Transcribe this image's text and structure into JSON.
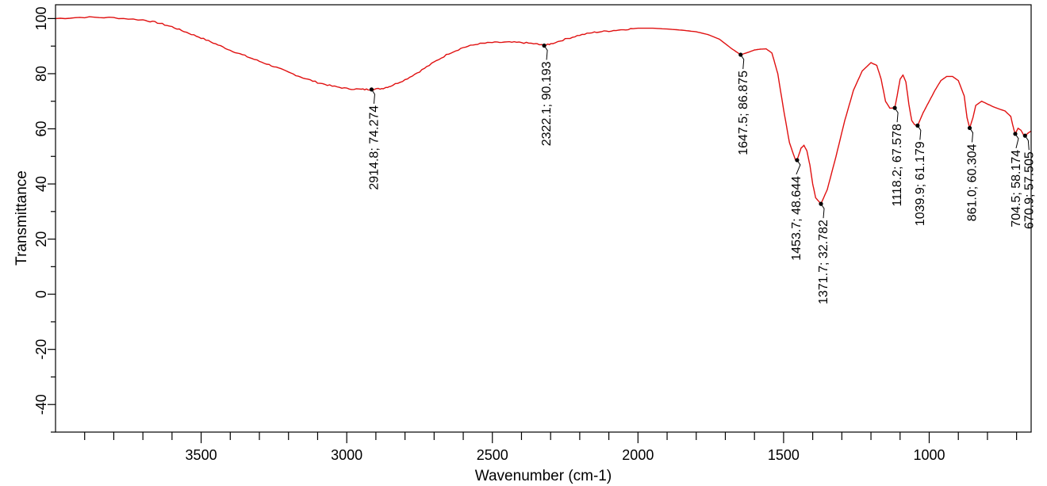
{
  "chart_data": {
    "type": "line",
    "xlabel": "Wavenumber (cm-1)",
    "ylabel": "Transmittance",
    "xlim": [
      4000,
      650
    ],
    "ylim": [
      -50,
      105
    ],
    "x_ticks": [
      3500,
      3000,
      2500,
      2000,
      1500,
      1000
    ],
    "y_ticks": [
      -40,
      -20,
      0,
      20,
      40,
      60,
      80,
      100
    ],
    "grid": false,
    "line_color": "#e01010",
    "series": [
      {
        "x": [
          4000,
          3900,
          3800,
          3700,
          3650,
          3600,
          3550,
          3500,
          3450,
          3400,
          3350,
          3300,
          3250,
          3200,
          3150,
          3100,
          3050,
          3000,
          2950,
          2914.8,
          2880,
          2850,
          2800,
          2750,
          2700,
          2650,
          2600,
          2550,
          2500,
          2450,
          2400,
          2350,
          2322.1,
          2300,
          2250,
          2200,
          2150,
          2100,
          2050,
          2000,
          1950,
          1900,
          1850,
          1800,
          1760,
          1720,
          1680,
          1647.5,
          1620,
          1600,
          1580,
          1560,
          1540,
          1520,
          1500,
          1480,
          1460,
          1453.7,
          1440,
          1430,
          1420,
          1410,
          1400,
          1390,
          1371.7,
          1350,
          1320,
          1290,
          1260,
          1230,
          1200,
          1180,
          1165,
          1150,
          1135,
          1118.2,
          1110,
          1100,
          1090,
          1080,
          1070,
          1060,
          1050,
          1039.9,
          1020,
          1000,
          980,
          960,
          940,
          920,
          900,
          880,
          870,
          861.0,
          850,
          840,
          820,
          800,
          780,
          760,
          740,
          720,
          710,
          704.5,
          695,
          685,
          675,
          670.9,
          660,
          650
        ],
        "y": [
          100,
          100.5,
          100.3,
          99.5,
          98.5,
          97,
          95,
          93,
          90.8,
          88.5,
          86.5,
          84.5,
          82.6,
          80.5,
          78.5,
          76.8,
          75.5,
          74.6,
          74.3,
          74.274,
          74.6,
          75.5,
          77.8,
          80.8,
          84.2,
          87.3,
          89.5,
          90.8,
          91.3,
          91.4,
          91.3,
          90.8,
          90.193,
          90.8,
          92.5,
          94,
          95,
          95.5,
          96,
          96.5,
          96.5,
          96.2,
          95.8,
          95.2,
          94.2,
          92.5,
          89.2,
          86.875,
          87.8,
          88.6,
          88.9,
          89,
          87.5,
          80,
          67,
          55,
          48.9,
          48.644,
          53,
          54,
          52,
          47,
          40,
          35,
          32.782,
          38,
          50,
          63,
          74,
          81,
          84,
          83,
          78,
          70,
          67.5,
          67.578,
          72,
          78,
          79.5,
          77,
          69,
          63,
          61.5,
          61.179,
          66,
          70,
          74,
          77.5,
          79,
          79,
          77.5,
          72,
          64,
          60.304,
          64,
          68.5,
          70,
          69,
          68,
          67.2,
          66.5,
          64.5,
          60,
          58.174,
          60.2,
          59.5,
          57.6,
          57.505,
          58.5,
          59.2
        ]
      }
    ],
    "annotations": [
      {
        "x": 2914.8,
        "y": 74.274,
        "text": "2914.8; 74.274"
      },
      {
        "x": 2322.1,
        "y": 90.193,
        "text": "2322.1; 90.193"
      },
      {
        "x": 1647.5,
        "y": 86.875,
        "text": "1647.5; 86.875"
      },
      {
        "x": 1453.7,
        "y": 48.644,
        "text": "1453.7; 48.644"
      },
      {
        "x": 1371.7,
        "y": 32.782,
        "text": "1371.7; 32.782"
      },
      {
        "x": 1118.2,
        "y": 67.578,
        "text": "1118.2; 67.578"
      },
      {
        "x": 1039.9,
        "y": 61.179,
        "text": "1039.9; 61.179"
      },
      {
        "x": 861.0,
        "y": 60.304,
        "text": "861.0; 60.304"
      },
      {
        "x": 704.5,
        "y": 58.174,
        "text": "704.5; 58.174"
      },
      {
        "x": 670.9,
        "y": 57.505,
        "text": "670.9; 57.505"
      }
    ]
  }
}
